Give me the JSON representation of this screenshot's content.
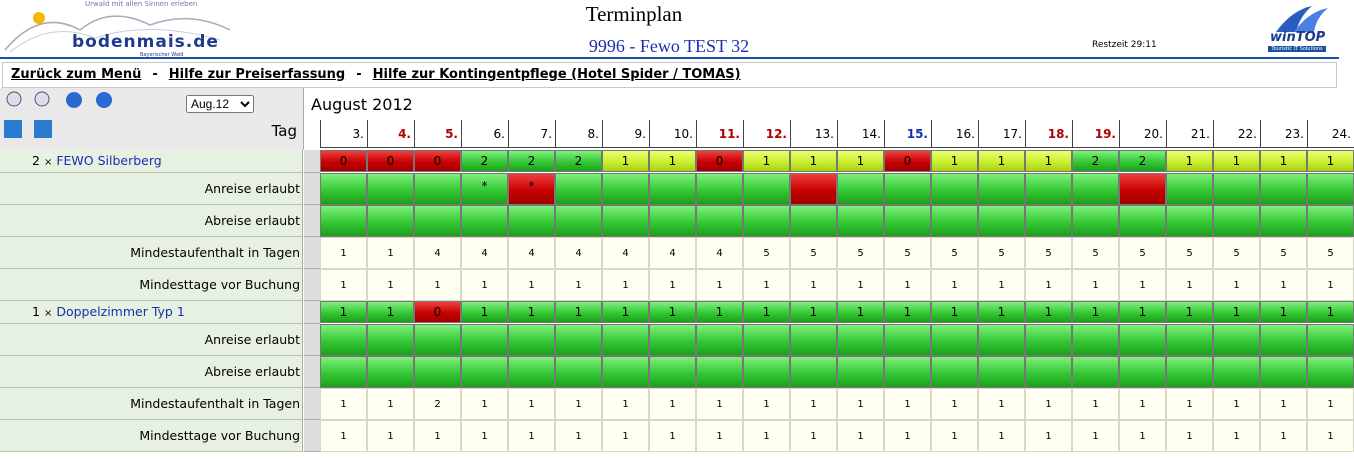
{
  "header": {
    "logo_tagline": "Urwald mit allen Sinnen erleben",
    "logo_name": "bodenmais.de",
    "logo_sub": "Bayerischer Wald",
    "title": "Terminplan",
    "subtitle": "9996 - Fewo TEST 32",
    "timer": "Restzeit 29:11",
    "brand": "winTOP",
    "brand_sub": "Touristic IT Solutions"
  },
  "nav": [
    "Zurück zum Menü",
    "-",
    "Hilfe zur Preiserfassung",
    "-",
    "Hilfe zur Kontingentpflege (Hotel Spider / TOMAS)"
  ],
  "toolbar": {
    "month_select": "Aug.12",
    "day_label": "Tag"
  },
  "calendar": {
    "month": "August 2012",
    "days": [
      {
        "label": "3.",
        "kind": "weekday"
      },
      {
        "label": "4.",
        "kind": "weekend"
      },
      {
        "label": "5.",
        "kind": "weekend"
      },
      {
        "label": "6.",
        "kind": "weekday"
      },
      {
        "label": "7.",
        "kind": "weekday"
      },
      {
        "label": "8.",
        "kind": "weekday"
      },
      {
        "label": "9.",
        "kind": "weekday"
      },
      {
        "label": "10.",
        "kind": "weekday"
      },
      {
        "label": "11.",
        "kind": "weekend"
      },
      {
        "label": "12.",
        "kind": "weekend"
      },
      {
        "label": "13.",
        "kind": "weekday"
      },
      {
        "label": "14.",
        "kind": "weekday"
      },
      {
        "label": "15.",
        "kind": "holiday"
      },
      {
        "label": "16.",
        "kind": "weekday"
      },
      {
        "label": "17.",
        "kind": "weekday"
      },
      {
        "label": "18.",
        "kind": "weekend"
      },
      {
        "label": "19.",
        "kind": "weekend"
      },
      {
        "label": "20.",
        "kind": "weekday"
      },
      {
        "label": "21.",
        "kind": "weekday"
      },
      {
        "label": "22.",
        "kind": "weekday"
      },
      {
        "label": "23.",
        "kind": "weekday"
      },
      {
        "label": "24.",
        "kind": "weekday"
      }
    ]
  },
  "rooms": [
    {
      "count": 2,
      "sign": "×",
      "name": "FEWO Silberberg",
      "availability": [
        0,
        0,
        0,
        2,
        2,
        2,
        1,
        1,
        0,
        1,
        1,
        1,
        0,
        1,
        1,
        1,
        2,
        2,
        1,
        1,
        1,
        1
      ],
      "rows": [
        {
          "label": "Anreise erlaubt",
          "type": "flag",
          "cells": [
            {
              "ok": true
            },
            {
              "ok": true
            },
            {
              "ok": true
            },
            {
              "ok": true,
              "note": "*"
            },
            {
              "ok": false,
              "note": "*"
            },
            {
              "ok": true
            },
            {
              "ok": true
            },
            {
              "ok": true
            },
            {
              "ok": true
            },
            {
              "ok": true
            },
            {
              "ok": false
            },
            {
              "ok": true
            },
            {
              "ok": true
            },
            {
              "ok": true
            },
            {
              "ok": true
            },
            {
              "ok": true
            },
            {
              "ok": true
            },
            {
              "ok": false
            },
            {
              "ok": true
            },
            {
              "ok": true
            },
            {
              "ok": true
            },
            {
              "ok": true
            }
          ]
        },
        {
          "label": "Abreise erlaubt",
          "type": "flag",
          "cells": [
            {
              "ok": true
            },
            {
              "ok": true
            },
            {
              "ok": true
            },
            {
              "ok": true
            },
            {
              "ok": true
            },
            {
              "ok": true
            },
            {
              "ok": true
            },
            {
              "ok": true
            },
            {
              "ok": true
            },
            {
              "ok": true
            },
            {
              "ok": true
            },
            {
              "ok": true
            },
            {
              "ok": true
            },
            {
              "ok": true
            },
            {
              "ok": true
            },
            {
              "ok": true
            },
            {
              "ok": true
            },
            {
              "ok": true
            },
            {
              "ok": true
            },
            {
              "ok": true
            },
            {
              "ok": true
            },
            {
              "ok": true
            }
          ]
        },
        {
          "label": "Mindestaufenthalt in Tagen",
          "type": "number",
          "cells": [
            1,
            1,
            4,
            4,
            4,
            4,
            4,
            4,
            4,
            5,
            5,
            5,
            5,
            5,
            5,
            5,
            5,
            5,
            5,
            5,
            5,
            5
          ]
        },
        {
          "label": "Mindesttage vor Buchung",
          "type": "number",
          "cells": [
            1,
            1,
            1,
            1,
            1,
            1,
            1,
            1,
            1,
            1,
            1,
            1,
            1,
            1,
            1,
            1,
            1,
            1,
            1,
            1,
            1,
            1
          ]
        }
      ]
    },
    {
      "count": 1,
      "sign": "×",
      "name": "Doppelzimmer Typ 1",
      "availability": [
        1,
        1,
        0,
        1,
        1,
        1,
        1,
        1,
        1,
        1,
        1,
        1,
        1,
        1,
        1,
        1,
        1,
        1,
        1,
        1,
        1,
        1
      ],
      "rows": [
        {
          "label": "Anreise erlaubt",
          "type": "flag",
          "cells": [
            {
              "ok": true
            },
            {
              "ok": true
            },
            {
              "ok": true
            },
            {
              "ok": true
            },
            {
              "ok": true
            },
            {
              "ok": true
            },
            {
              "ok": true
            },
            {
              "ok": true
            },
            {
              "ok": true
            },
            {
              "ok": true
            },
            {
              "ok": true
            },
            {
              "ok": true
            },
            {
              "ok": true
            },
            {
              "ok": true
            },
            {
              "ok": true
            },
            {
              "ok": true
            },
            {
              "ok": true
            },
            {
              "ok": true
            },
            {
              "ok": true
            },
            {
              "ok": true
            },
            {
              "ok": true
            },
            {
              "ok": true
            }
          ]
        },
        {
          "label": "Abreise erlaubt",
          "type": "flag",
          "cells": [
            {
              "ok": true
            },
            {
              "ok": true
            },
            {
              "ok": true
            },
            {
              "ok": true
            },
            {
              "ok": true
            },
            {
              "ok": true
            },
            {
              "ok": true
            },
            {
              "ok": true
            },
            {
              "ok": true
            },
            {
              "ok": true
            },
            {
              "ok": true
            },
            {
              "ok": true
            },
            {
              "ok": true
            },
            {
              "ok": true
            },
            {
              "ok": true
            },
            {
              "ok": true
            },
            {
              "ok": true
            },
            {
              "ok": true
            },
            {
              "ok": true
            },
            {
              "ok": true
            },
            {
              "ok": true
            },
            {
              "ok": true
            }
          ]
        },
        {
          "label": "Mindestaufenthalt in Tagen",
          "type": "number",
          "cells": [
            1,
            1,
            2,
            1,
            1,
            1,
            1,
            1,
            1,
            1,
            1,
            1,
            1,
            1,
            1,
            1,
            1,
            1,
            1,
            1,
            1,
            1
          ]
        },
        {
          "label": "Mindesttage vor Buchung",
          "type": "number",
          "cells": [
            1,
            1,
            1,
            1,
            1,
            1,
            1,
            1,
            1,
            1,
            1,
            1,
            1,
            1,
            1,
            1,
            1,
            1,
            1,
            1,
            1,
            1
          ]
        }
      ]
    }
  ]
}
